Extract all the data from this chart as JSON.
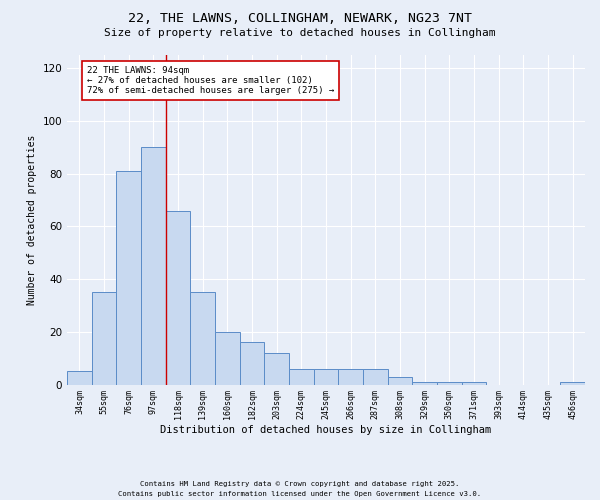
{
  "title_line1": "22, THE LAWNS, COLLINGHAM, NEWARK, NG23 7NT",
  "title_line2": "Size of property relative to detached houses in Collingham",
  "xlabel": "Distribution of detached houses by size in Collingham",
  "ylabel": "Number of detached properties",
  "bin_labels": [
    "34sqm",
    "55sqm",
    "76sqm",
    "97sqm",
    "118sqm",
    "139sqm",
    "160sqm",
    "182sqm",
    "203sqm",
    "224sqm",
    "245sqm",
    "266sqm",
    "287sqm",
    "308sqm",
    "329sqm",
    "350sqm",
    "371sqm",
    "393sqm",
    "414sqm",
    "435sqm",
    "456sqm"
  ],
  "bar_heights": [
    5,
    35,
    81,
    90,
    66,
    35,
    20,
    16,
    12,
    6,
    6,
    6,
    6,
    3,
    1,
    1,
    1,
    0,
    0,
    0,
    1
  ],
  "bar_color": "#c8d9f0",
  "bar_edge_color": "#5b8cc8",
  "background_color": "#e8eef8",
  "grid_color": "#ffffff",
  "property_line_x": 3.5,
  "property_label": "22 THE LAWNS: 94sqm",
  "smaller_pct": "27% of detached houses are smaller (102)",
  "larger_pct": "72% of semi-detached houses are larger (275)",
  "annotation_box_color": "#ffffff",
  "annotation_box_edge": "#cc0000",
  "red_line_color": "#cc0000",
  "ylim": [
    0,
    125
  ],
  "yticks": [
    0,
    20,
    40,
    60,
    80,
    100,
    120
  ],
  "footnote1": "Contains HM Land Registry data © Crown copyright and database right 2025.",
  "footnote2": "Contains public sector information licensed under the Open Government Licence v3.0."
}
